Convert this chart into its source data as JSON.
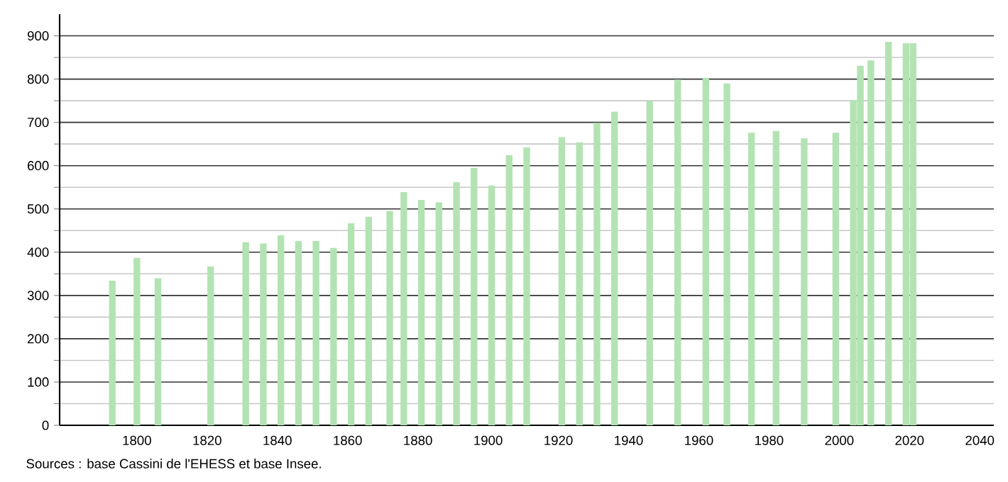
{
  "chart_data": {
    "type": "bar",
    "x": [
      1793,
      1800,
      1806,
      1821,
      1831,
      1836,
      1841,
      1846,
      1851,
      1856,
      1861,
      1866,
      1872,
      1876,
      1881,
      1886,
      1891,
      1896,
      1901,
      1906,
      1911,
      1921,
      1926,
      1931,
      1936,
      1946,
      1954,
      1962,
      1968,
      1975,
      1982,
      1990,
      1999,
      2004,
      2006,
      2009,
      2014,
      2019,
      2021
    ],
    "values": [
      334,
      387,
      340,
      367,
      423,
      420,
      439,
      426,
      426,
      410,
      467,
      482,
      495,
      539,
      521,
      515,
      562,
      595,
      554,
      624,
      642,
      666,
      654,
      699,
      725,
      749,
      799,
      803,
      790,
      676,
      680,
      663,
      676,
      752,
      831,
      843,
      886,
      883,
      883
    ],
    "color": "#b3e3b3",
    "xlim": [
      1778,
      2044
    ],
    "xticks": [
      1800,
      1820,
      1840,
      1860,
      1880,
      1900,
      1920,
      1940,
      1960,
      1980,
      2000,
      2020,
      2040
    ],
    "ylim": [
      0,
      950
    ],
    "yticks": [
      0,
      100,
      200,
      300,
      400,
      500,
      600,
      700,
      800,
      900
    ],
    "grid": "y",
    "annotations": [
      "Sources : base Cassini de l'EHESS et base Insee."
    ]
  }
}
